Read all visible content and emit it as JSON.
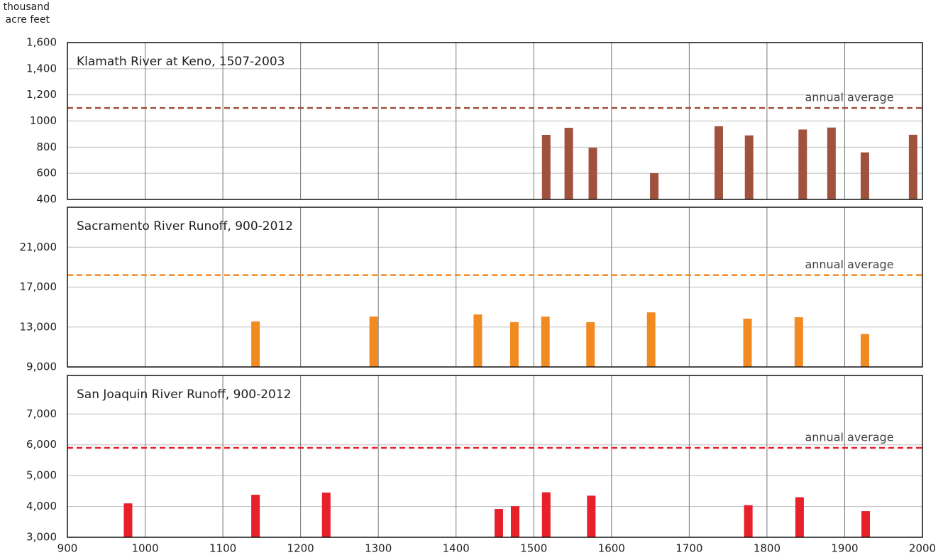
{
  "chart_data": [
    {
      "type": "bar",
      "title": "Klamath River at Keno, 1507-2003",
      "y_label": [
        "thousand",
        "acre feet"
      ],
      "x": [
        1516,
        1545,
        1576,
        1655,
        1738,
        1777,
        1846,
        1883,
        1926,
        1988
      ],
      "values": [
        894,
        948,
        796,
        601,
        960,
        890,
        935,
        950,
        760,
        895
      ],
      "color": "#a0523e",
      "average": 1100,
      "average_label": "annual average",
      "xlim": [
        900,
        2000
      ],
      "xticks": [
        900,
        1000,
        1100,
        1200,
        1300,
        1400,
        1500,
        1600,
        1700,
        1800,
        1900,
        2000
      ],
      "ylim": [
        400,
        1600
      ],
      "yticks": [
        400,
        600,
        800,
        1000,
        {
          "value": 1200,
          "label": "1,200"
        },
        {
          "value": 1400,
          "label": "1,400"
        },
        {
          "value": 1600,
          "label": "1,600"
        }
      ],
      "grid": true
    },
    {
      "type": "bar",
      "title": "Sacramento River Runoff, 900-2012",
      "x": [
        1142,
        1294,
        1428,
        1475,
        1515,
        1573,
        1651,
        1775,
        1841,
        1926
      ],
      "values": [
        13560,
        14050,
        14260,
        13490,
        14050,
        13490,
        14470,
        13840,
        13980,
        12300
      ],
      "color": "#f28a22",
      "average": 18200,
      "average_label": "annual average",
      "xlim": [
        900,
        2000
      ],
      "xticks": [
        900,
        1000,
        1100,
        1200,
        1300,
        1400,
        1500,
        1600,
        1700,
        1800,
        1900,
        2000
      ],
      "ylim": [
        9000,
        25000
      ],
      "yticks": [
        {
          "value": 9000,
          "label": "9,000"
        },
        {
          "value": 13000,
          "label": "13,000"
        },
        {
          "value": 17000,
          "label": "17,000"
        },
        {
          "value": 21000,
          "label": "21,000"
        }
      ],
      "grid": true
    },
    {
      "type": "bar",
      "title": "San Joaquin River Runoff, 900-2012",
      "x": [
        978,
        1142,
        1233,
        1455,
        1476,
        1516,
        1574,
        1776,
        1842,
        1927
      ],
      "values": [
        4100,
        4380,
        4450,
        3920,
        4010,
        4460,
        4350,
        4040,
        4300,
        3850
      ],
      "color": "#e8202a",
      "average": 5900,
      "average_label": "annual average",
      "xlim": [
        900,
        2000
      ],
      "xticks": [
        900,
        1000,
        1100,
        1200,
        1300,
        1400,
        1500,
        1600,
        1700,
        1800,
        1900,
        2000
      ],
      "xtick_labels": true,
      "ylim": [
        3000,
        8250
      ],
      "yticks": [
        {
          "value": 3000,
          "label": "3,000"
        },
        {
          "value": 4000,
          "label": "4,000"
        },
        {
          "value": 5000,
          "label": "5,000"
        },
        {
          "value": 6000,
          "label": "6,000"
        },
        {
          "value": 7000,
          "label": "7,000"
        }
      ],
      "grid": true
    }
  ]
}
